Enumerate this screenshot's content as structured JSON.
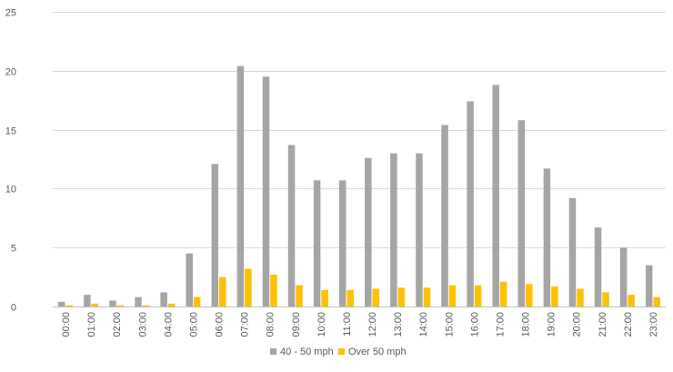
{
  "chart_data": {
    "type": "bar",
    "title": "",
    "xlabel": "",
    "ylabel": "",
    "ylim": [
      0,
      25
    ],
    "yticks": [
      0,
      5,
      10,
      15,
      20,
      25
    ],
    "grid": "horizontal",
    "legend_position": "bottom",
    "categories": [
      "00:00",
      "01:00",
      "02:00",
      "03:00",
      "04:00",
      "05:00",
      "06:00",
      "07:00",
      "08:00",
      "09:00",
      "10:00",
      "11:00",
      "12:00",
      "13:00",
      "14:00",
      "15:00",
      "16:00",
      "17:00",
      "18:00",
      "19:00",
      "20:00",
      "21:00",
      "22:00",
      "23:00"
    ],
    "series": [
      {
        "name": "40 - 50 mph",
        "color": "#a5a5a5",
        "values": [
          0.4,
          1.0,
          0.5,
          0.8,
          1.2,
          4.5,
          12.1,
          20.4,
          19.5,
          13.7,
          10.7,
          10.7,
          12.6,
          13.0,
          13.0,
          15.4,
          17.4,
          18.8,
          15.8,
          11.7,
          9.2,
          6.7,
          5.0,
          3.5
        ]
      },
      {
        "name": "Over 50 mph",
        "color": "#ffc000",
        "values": [
          0.1,
          0.25,
          0.1,
          0.1,
          0.25,
          0.8,
          2.5,
          3.2,
          2.7,
          1.8,
          1.4,
          1.4,
          1.5,
          1.6,
          1.6,
          1.8,
          1.8,
          2.1,
          1.9,
          1.7,
          1.5,
          1.2,
          1.0,
          0.8
        ]
      }
    ]
  }
}
